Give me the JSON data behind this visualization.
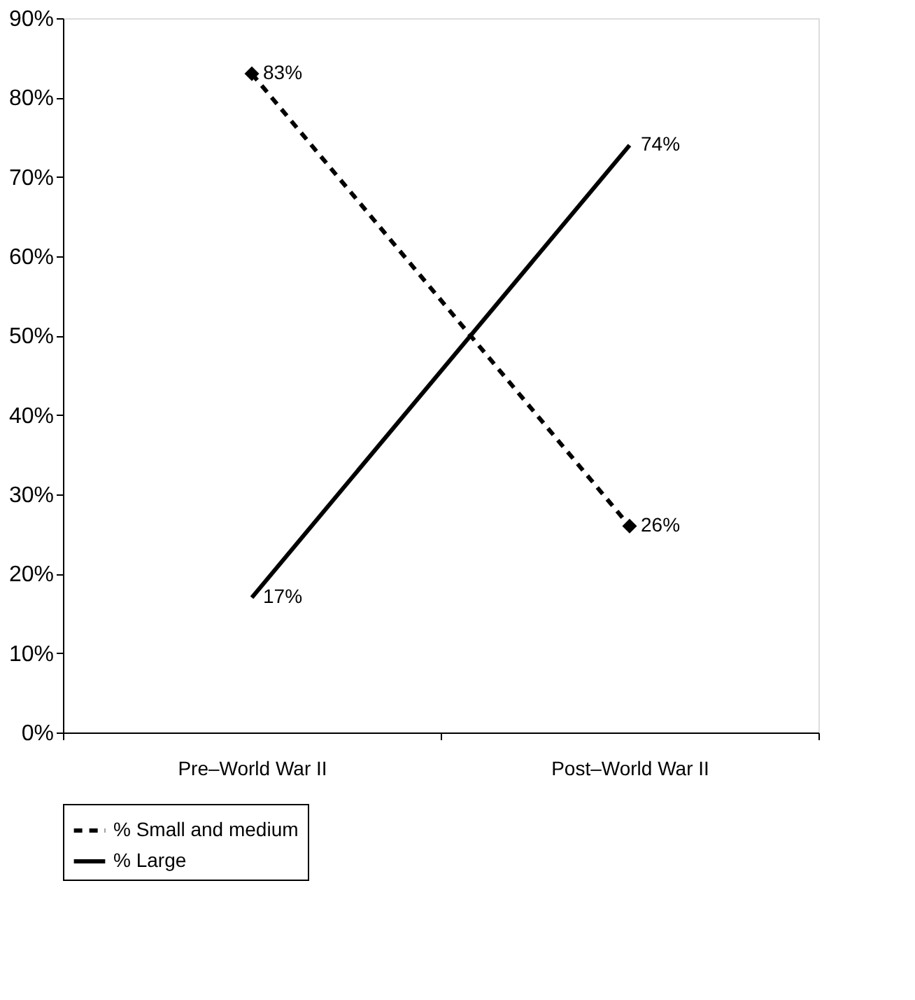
{
  "chart_data": {
    "type": "line",
    "categories": [
      "Pre–World War II",
      "Post–World War II"
    ],
    "series": [
      {
        "name": "% Small and medium",
        "color": "#000000",
        "values": [
          83,
          26
        ],
        "line_style": "dashed",
        "marker": "diamond",
        "value_labels": [
          "83%",
          "26%"
        ]
      },
      {
        "name": "% Large",
        "color": "#000000",
        "values": [
          17,
          74
        ],
        "line_style": "solid",
        "marker": "none",
        "value_labels": [
          "17%",
          "74%"
        ]
      }
    ],
    "ylim": [
      0,
      90
    ],
    "yticks": [
      {
        "value": 0,
        "label": "0%"
      },
      {
        "value": 10,
        "label": "10%"
      },
      {
        "value": 20,
        "label": "20%"
      },
      {
        "value": 30,
        "label": "30%"
      },
      {
        "value": 40,
        "label": "40%"
      },
      {
        "value": 50,
        "label": "50%"
      },
      {
        "value": 60,
        "label": "60%"
      },
      {
        "value": 70,
        "label": "70%"
      },
      {
        "value": 80,
        "label": "80%"
      },
      {
        "value": 90,
        "label": "90%"
      }
    ],
    "grid": false,
    "legend": "bottom"
  }
}
